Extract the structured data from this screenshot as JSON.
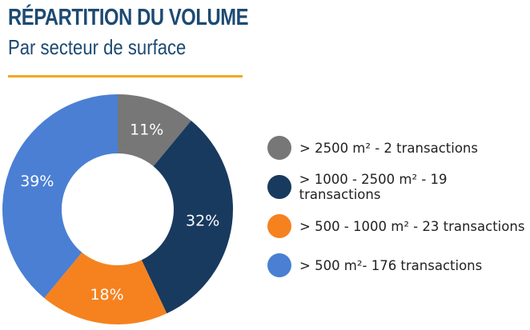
{
  "chart_data": {
    "type": "pie",
    "variant": "donut",
    "title": "RÉPARTITION DU VOLUME",
    "subtitle": "Par secteur de surface",
    "start": "top",
    "direction": "clockwise",
    "legend_position": "right",
    "slices": [
      {
        "label": "> 2500 m² - 2 transactions",
        "value": 11,
        "value_label": "11%",
        "color": "#777777"
      },
      {
        "label": "> 1000 - 2500 m² - 19 transactions",
        "value": 32,
        "value_label": "32%",
        "color": "#183a5e"
      },
      {
        "label": "> 500 - 1000 m² - 23 transactions",
        "value": 18,
        "value_label": "18%",
        "color": "#f5821f"
      },
      {
        "label": "> 500 m²- 176 transactions",
        "value": 39,
        "value_label": "39%",
        "color": "#4a7fd4"
      }
    ]
  },
  "colors": {
    "title": "#1d4a72",
    "rule": "#f5a623"
  }
}
